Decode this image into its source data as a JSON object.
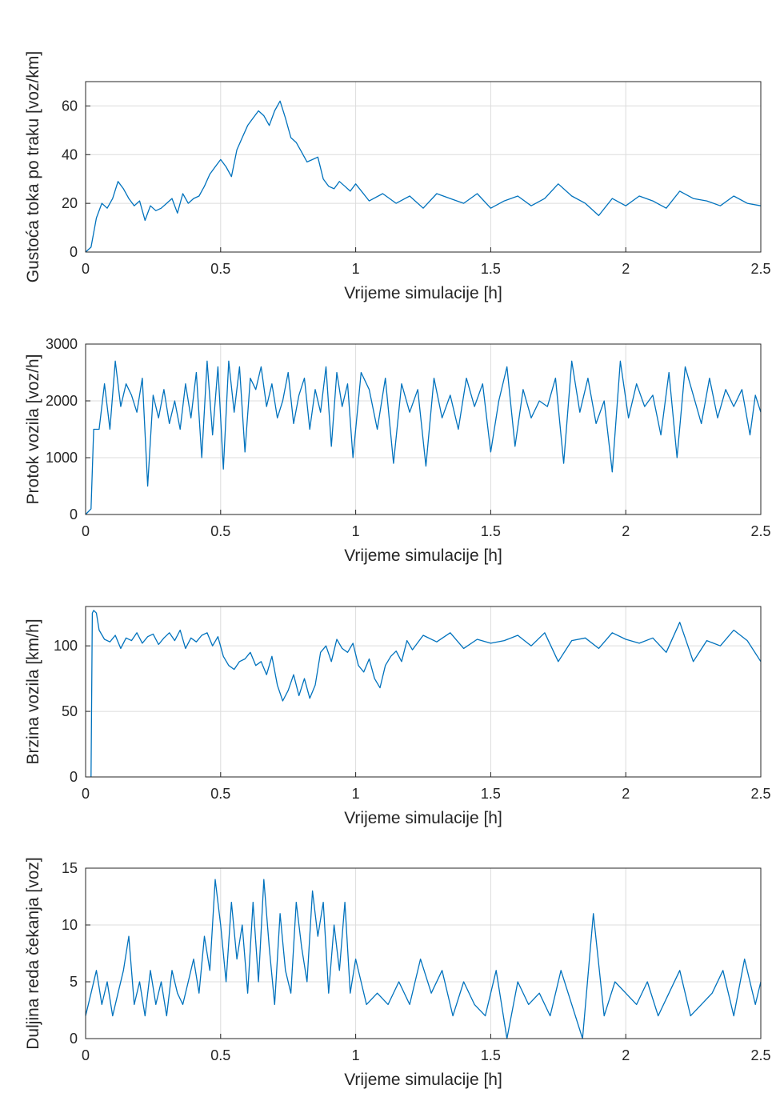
{
  "chart_data": [
    {
      "type": "line",
      "xlabel": "Vrijeme simulacije [h]",
      "ylabel": "Gustoća toka po traku [voz/km]",
      "xlim": [
        0,
        2.5
      ],
      "ylim": [
        0,
        70
      ],
      "xticks": [
        0,
        0.5,
        1,
        1.5,
        2,
        2.5
      ],
      "xtick_labels": [
        "0",
        "0.5",
        "1",
        "1.5",
        "2",
        "2.5"
      ],
      "yticks": [
        0,
        20,
        40,
        60
      ],
      "ytick_labels": [
        "0",
        "20",
        "40",
        "60"
      ],
      "grid": true,
      "color": "#0072BD",
      "series": [
        {
          "x": [
            0.0,
            0.02,
            0.04,
            0.06,
            0.08,
            0.1,
            0.12,
            0.14,
            0.16,
            0.18,
            0.2,
            0.22,
            0.24,
            0.26,
            0.28,
            0.3,
            0.32,
            0.34,
            0.36,
            0.38,
            0.4,
            0.42,
            0.44,
            0.46,
            0.48,
            0.5,
            0.52,
            0.54,
            0.56,
            0.58,
            0.6,
            0.62,
            0.64,
            0.66,
            0.68,
            0.7,
            0.72,
            0.74,
            0.76,
            0.78,
            0.8,
            0.82,
            0.84,
            0.86,
            0.88,
            0.9,
            0.92,
            0.94,
            0.96,
            0.98,
            1.0,
            1.05,
            1.1,
            1.15,
            1.2,
            1.25,
            1.3,
            1.35,
            1.4,
            1.45,
            1.5,
            1.55,
            1.6,
            1.65,
            1.7,
            1.75,
            1.8,
            1.85,
            1.9,
            1.95,
            2.0,
            2.05,
            2.1,
            2.15,
            2.2,
            2.25,
            2.3,
            2.35,
            2.4,
            2.45,
            2.5
          ],
          "values": [
            0,
            2,
            14,
            20,
            18,
            22,
            29,
            26,
            22,
            19,
            21,
            13,
            19,
            17,
            18,
            20,
            22,
            16,
            24,
            20,
            22,
            23,
            27,
            32,
            35,
            38,
            35,
            31,
            42,
            47,
            52,
            55,
            58,
            56,
            52,
            58,
            62,
            55,
            47,
            45,
            41,
            37,
            38,
            39,
            30,
            27,
            26,
            29,
            27,
            25,
            28,
            21,
            24,
            20,
            23,
            18,
            24,
            22,
            20,
            24,
            18,
            21,
            23,
            19,
            22,
            28,
            23,
            20,
            15,
            22,
            19,
            23,
            21,
            18,
            25,
            22,
            21,
            19,
            23,
            20,
            19
          ]
        }
      ]
    },
    {
      "type": "line",
      "xlabel": "Vrijeme simulacije [h]",
      "ylabel": "Protok vozila [voz/h]",
      "xlim": [
        0,
        2.5
      ],
      "ylim": [
        0,
        3000
      ],
      "xticks": [
        0,
        0.5,
        1,
        1.5,
        2,
        2.5
      ],
      "xtick_labels": [
        "0",
        "0.5",
        "1",
        "1.5",
        "2",
        "2.5"
      ],
      "yticks": [
        0,
        1000,
        2000,
        3000
      ],
      "ytick_labels": [
        "0",
        "1000",
        "2000",
        "3000"
      ],
      "grid": true,
      "color": "#0072BD",
      "series": [
        {
          "x": [
            0.0,
            0.02,
            0.03,
            0.05,
            0.07,
            0.09,
            0.11,
            0.13,
            0.15,
            0.17,
            0.19,
            0.21,
            0.23,
            0.25,
            0.27,
            0.29,
            0.31,
            0.33,
            0.35,
            0.37,
            0.39,
            0.41,
            0.43,
            0.45,
            0.47,
            0.49,
            0.51,
            0.53,
            0.55,
            0.57,
            0.59,
            0.61,
            0.63,
            0.65,
            0.67,
            0.69,
            0.71,
            0.73,
            0.75,
            0.77,
            0.79,
            0.81,
            0.83,
            0.85,
            0.87,
            0.89,
            0.91,
            0.93,
            0.95,
            0.97,
            0.99,
            1.02,
            1.05,
            1.08,
            1.11,
            1.14,
            1.17,
            1.2,
            1.23,
            1.26,
            1.29,
            1.32,
            1.35,
            1.38,
            1.41,
            1.44,
            1.47,
            1.5,
            1.53,
            1.56,
            1.59,
            1.62,
            1.65,
            1.68,
            1.71,
            1.74,
            1.77,
            1.8,
            1.83,
            1.86,
            1.89,
            1.92,
            1.95,
            1.98,
            2.01,
            2.04,
            2.07,
            2.1,
            2.13,
            2.16,
            2.19,
            2.22,
            2.25,
            2.28,
            2.31,
            2.34,
            2.37,
            2.4,
            2.43,
            2.46,
            2.48,
            2.5
          ],
          "values": [
            0,
            100,
            1500,
            1500,
            2300,
            1500,
            2700,
            1900,
            2300,
            2100,
            1800,
            2400,
            500,
            2100,
            1700,
            2200,
            1600,
            2000,
            1500,
            2300,
            1700,
            2500,
            1000,
            2700,
            1400,
            2600,
            800,
            2700,
            1800,
            2600,
            1100,
            2400,
            2200,
            2600,
            1900,
            2300,
            1700,
            2000,
            2500,
            1600,
            2100,
            2400,
            1500,
            2200,
            1800,
            2600,
            1200,
            2500,
            1900,
            2300,
            1000,
            2500,
            2200,
            1500,
            2400,
            900,
            2300,
            1800,
            2200,
            850,
            2400,
            1700,
            2100,
            1500,
            2400,
            1900,
            2300,
            1100,
            2000,
            2600,
            1200,
            2200,
            1700,
            2000,
            1900,
            2400,
            900,
            2700,
            1800,
            2400,
            1600,
            2000,
            750,
            2700,
            1700,
            2300,
            1900,
            2100,
            1400,
            2500,
            1000,
            2600,
            2100,
            1600,
            2400,
            1700,
            2200,
            1900,
            2200,
            1400,
            2100,
            1800
          ]
        }
      ]
    },
    {
      "type": "line",
      "xlabel": "Vrijeme simulacije [h]",
      "ylabel": "Brzina vozila [km/h]",
      "xlim": [
        0,
        2.5
      ],
      "ylim": [
        0,
        130
      ],
      "xticks": [
        0,
        0.5,
        1,
        1.5,
        2,
        2.5
      ],
      "xtick_labels": [
        "0",
        "0.5",
        "1",
        "1.5",
        "2",
        "2.5"
      ],
      "yticks": [
        0,
        50,
        100
      ],
      "ytick_labels": [
        "0",
        "50",
        "100"
      ],
      "grid": true,
      "color": "#0072BD",
      "series": [
        {
          "x": [
            0.02,
            0.025,
            0.03,
            0.04,
            0.05,
            0.07,
            0.09,
            0.11,
            0.13,
            0.15,
            0.17,
            0.19,
            0.21,
            0.23,
            0.25,
            0.27,
            0.29,
            0.31,
            0.33,
            0.35,
            0.37,
            0.39,
            0.41,
            0.43,
            0.45,
            0.47,
            0.49,
            0.51,
            0.53,
            0.55,
            0.57,
            0.59,
            0.61,
            0.63,
            0.65,
            0.67,
            0.69,
            0.71,
            0.73,
            0.75,
            0.77,
            0.79,
            0.81,
            0.83,
            0.85,
            0.87,
            0.89,
            0.91,
            0.93,
            0.95,
            0.97,
            0.99,
            1.01,
            1.03,
            1.05,
            1.07,
            1.09,
            1.11,
            1.13,
            1.15,
            1.17,
            1.19,
            1.21,
            1.25,
            1.3,
            1.35,
            1.4,
            1.45,
            1.5,
            1.55,
            1.6,
            1.65,
            1.7,
            1.75,
            1.8,
            1.85,
            1.9,
            1.95,
            2.0,
            2.05,
            2.1,
            2.15,
            2.2,
            2.25,
            2.3,
            2.35,
            2.4,
            2.45,
            2.5
          ],
          "values": [
            0,
            125,
            127,
            125,
            112,
            105,
            103,
            108,
            98,
            106,
            104,
            110,
            102,
            107,
            109,
            101,
            106,
            110,
            104,
            112,
            98,
            106,
            103,
            108,
            110,
            100,
            107,
            92,
            85,
            82,
            88,
            90,
            95,
            85,
            88,
            78,
            92,
            70,
            58,
            66,
            78,
            62,
            75,
            60,
            70,
            95,
            100,
            88,
            105,
            98,
            95,
            102,
            85,
            80,
            90,
            75,
            68,
            85,
            92,
            96,
            88,
            104,
            97,
            108,
            103,
            110,
            98,
            105,
            102,
            104,
            108,
            100,
            110,
            88,
            104,
            106,
            98,
            110,
            105,
            102,
            106,
            95,
            118,
            88,
            104,
            100,
            112,
            104,
            88
          ]
        }
      ]
    },
    {
      "type": "line",
      "xlabel": "Vrijeme simulacije [h]",
      "ylabel": "Duljina reda čekanja [voz]",
      "xlim": [
        0,
        2.5
      ],
      "ylim": [
        0,
        15
      ],
      "xticks": [
        0,
        0.5,
        1,
        1.5,
        2,
        2.5
      ],
      "xtick_labels": [
        "0",
        "0.5",
        "1",
        "1.5",
        "2",
        "2.5"
      ],
      "yticks": [
        0,
        5,
        10,
        15
      ],
      "ytick_labels": [
        "0",
        "5",
        "10",
        "15"
      ],
      "grid": true,
      "color": "#0072BD",
      "series": [
        {
          "x": [
            0.0,
            0.02,
            0.04,
            0.06,
            0.08,
            0.1,
            0.12,
            0.14,
            0.16,
            0.18,
            0.2,
            0.22,
            0.24,
            0.26,
            0.28,
            0.3,
            0.32,
            0.34,
            0.36,
            0.38,
            0.4,
            0.42,
            0.44,
            0.46,
            0.48,
            0.5,
            0.52,
            0.54,
            0.56,
            0.58,
            0.6,
            0.62,
            0.64,
            0.66,
            0.68,
            0.7,
            0.72,
            0.74,
            0.76,
            0.78,
            0.8,
            0.82,
            0.84,
            0.86,
            0.88,
            0.9,
            0.92,
            0.94,
            0.96,
            0.98,
            1.0,
            1.04,
            1.08,
            1.12,
            1.16,
            1.2,
            1.24,
            1.28,
            1.32,
            1.36,
            1.4,
            1.44,
            1.48,
            1.52,
            1.56,
            1.6,
            1.64,
            1.68,
            1.72,
            1.76,
            1.8,
            1.84,
            1.88,
            1.92,
            1.96,
            2.0,
            2.04,
            2.08,
            2.12,
            2.16,
            2.2,
            2.24,
            2.28,
            2.32,
            2.36,
            2.4,
            2.44,
            2.48,
            2.5
          ],
          "values": [
            2,
            4,
            6,
            3,
            5,
            2,
            4,
            6,
            9,
            3,
            5,
            2,
            6,
            3,
            5,
            2,
            6,
            4,
            3,
            5,
            7,
            4,
            9,
            6,
            14,
            10,
            5,
            12,
            7,
            10,
            4,
            12,
            5,
            14,
            8,
            3,
            11,
            6,
            4,
            12,
            8,
            5,
            13,
            9,
            12,
            4,
            10,
            6,
            12,
            4,
            7,
            3,
            4,
            3,
            5,
            3,
            7,
            4,
            6,
            2,
            5,
            3,
            2,
            6,
            0,
            5,
            3,
            4,
            2,
            6,
            3,
            0,
            11,
            2,
            5,
            4,
            3,
            5,
            2,
            4,
            6,
            2,
            3,
            4,
            6,
            2,
            7,
            3,
            5
          ]
        }
      ]
    }
  ]
}
